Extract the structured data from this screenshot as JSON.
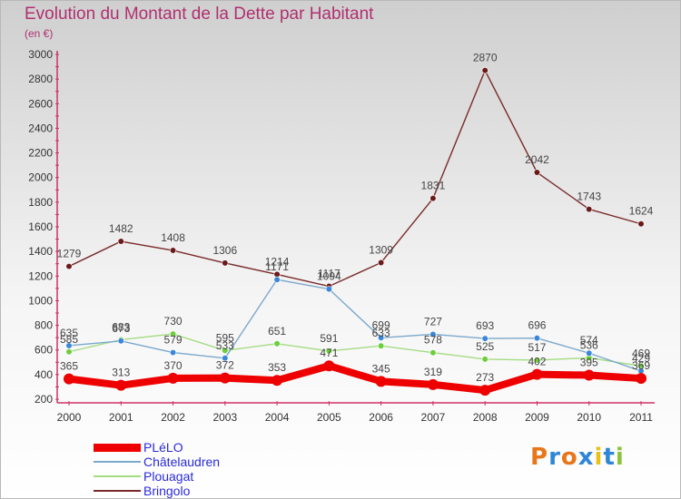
{
  "title": "Evolution du Montant de la Dette par Habitant",
  "subtitle": "(en €)",
  "colors": {
    "title": "#b03070",
    "axis_text": "#333333",
    "value_text": "#444444",
    "legend_text": "#2a2ad8"
  },
  "chart_data": {
    "type": "line",
    "title": "Evolution du Montant de la Dette par Habitant",
    "xlabel": "",
    "ylabel": "(en €)",
    "categories": [
      "2000",
      "2001",
      "2002",
      "2003",
      "2004",
      "2005",
      "2006",
      "2007",
      "2008",
      "2009",
      "2010",
      "2011"
    ],
    "ylim": [
      200,
      3000
    ],
    "yticks": [
      200,
      400,
      600,
      800,
      1000,
      1200,
      1400,
      1600,
      1800,
      2000,
      2200,
      2400,
      2600,
      2800,
      3000
    ],
    "grid": false,
    "legend_position": "bottom-left",
    "series": [
      {
        "name": "PLéLO",
        "color": "#ee0000",
        "marker": "#ee0000",
        "emphasis": true,
        "values": [
          365,
          313,
          370,
          372,
          353,
          471,
          345,
          319,
          273,
          402,
          395,
          369
        ]
      },
      {
        "name": "Châtelaudren",
        "color": "#7ba8cc",
        "marker": "#3a86d8",
        "values": [
          635,
          673,
          579,
          533,
          1171,
          1094,
          699,
          727,
          693,
          696,
          574,
          429
        ]
      },
      {
        "name": "Plouagat",
        "color": "#a4dc82",
        "marker": "#6ccf3c",
        "values": [
          585,
          683,
          730,
          595,
          651,
          591,
          633,
          578,
          525,
          517,
          536,
          469
        ]
      },
      {
        "name": "Bringolo",
        "color": "#7a2a2a",
        "marker": "#6a1a1a",
        "values": [
          1279,
          1482,
          1408,
          1306,
          1214,
          1117,
          1309,
          1831,
          2870,
          2042,
          1743,
          1624
        ]
      }
    ]
  },
  "logo": {
    "letters": [
      "P",
      "r",
      "o",
      "x",
      "i",
      "t",
      "i"
    ],
    "colors": [
      "#e8761a",
      "#2f86d6",
      "#e8761a",
      "#2f86d6",
      "#e8c21a",
      "#2f86d6",
      "#8ac43a"
    ]
  }
}
